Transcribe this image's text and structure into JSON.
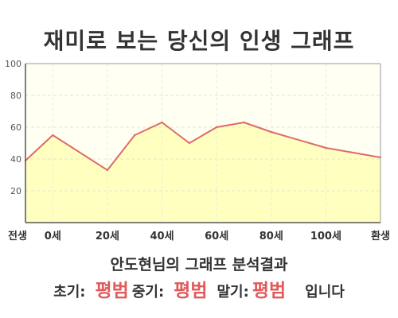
{
  "title": "재미로 보는 당신의 인생 그래프",
  "chart_data": {
    "type": "area",
    "title": "재미로 보는 당신의 인생 그래프",
    "x": [
      -10,
      0,
      20,
      30,
      40,
      50,
      60,
      70,
      80,
      100,
      120
    ],
    "values": [
      39,
      55,
      33,
      55,
      63,
      50,
      60,
      63,
      57,
      47,
      41
    ],
    "ylim": [
      0,
      100
    ],
    "yticks": [
      20,
      40,
      60,
      80,
      100
    ],
    "xticks": [
      {
        "x": -10,
        "label": "전생"
      },
      {
        "x": 0,
        "label": "0세"
      },
      {
        "x": 20,
        "label": "20세"
      },
      {
        "x": 40,
        "label": "40세"
      },
      {
        "x": 60,
        "label": "60세"
      },
      {
        "x": 80,
        "label": "80세"
      },
      {
        "x": 100,
        "label": "100세"
      },
      {
        "x": 120,
        "label": "환생"
      }
    ],
    "xlim": [
      -10,
      120
    ],
    "grid": true,
    "line_color": "#e06a6a",
    "fill_color": "#ffffc0",
    "plot_bg": "#fffff2"
  },
  "result": {
    "title": "안도현님의 그래프 분석결과",
    "early_label": "초기:",
    "early_value": "평범",
    "mid_label": "중기:",
    "mid_value": "평범",
    "late_label": "말기:",
    "late_value": "평범",
    "suffix": "입니다"
  }
}
